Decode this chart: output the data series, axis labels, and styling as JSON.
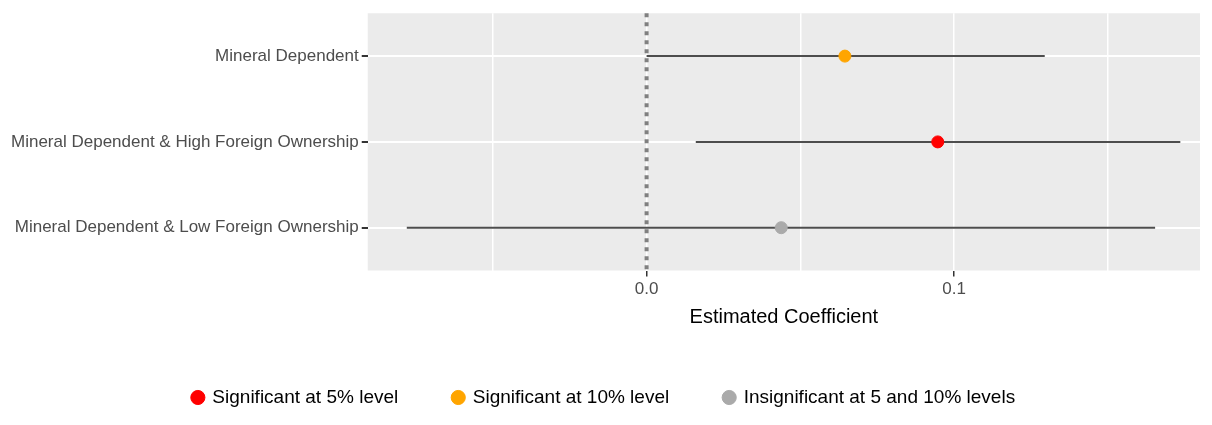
{
  "chart_data": {
    "type": "scatter",
    "orientation": "horizontal",
    "xlabel": "Estimated Coefficient",
    "categories": [
      "Mineral Dependent",
      "Mineral Dependent & High Foreign Ownership",
      "Mineral Dependent & Low Foreign Ownership"
    ],
    "series": [
      {
        "name": "Significant at 5% level",
        "color": "#ff0000",
        "values": [
          null,
          0.0947,
          null
        ],
        "errors": [
          null,
          [
            0.016,
            0.1736
          ],
          null
        ]
      },
      {
        "name": "Significant at 10% level",
        "color": "#ffa500",
        "values": [
          0.0645,
          null,
          null
        ],
        "errors": [
          [
            0.0,
            0.1295
          ],
          null,
          null
        ]
      },
      {
        "name": "Insignificant at 5 and 10% levels",
        "color": "#aaaaaa",
        "values": [
          null,
          null,
          0.0438
        ],
        "errors": [
          null,
          null,
          [
            -0.078,
            0.1654
          ]
        ]
      }
    ],
    "xlim": [
      -0.0907,
      0.18
    ],
    "xticks": [
      {
        "value": -0.05,
        "label": null
      },
      {
        "value": 0,
        "label": "0.0"
      },
      {
        "value": 0.05,
        "label": null
      },
      {
        "value": 0.1,
        "label": "0.1"
      },
      {
        "value": 0.15,
        "label": null
      }
    ],
    "ref_lines": [
      {
        "axis": "x",
        "value": 0,
        "line_style": "dotted",
        "color": "#808080"
      }
    ],
    "grid": true,
    "legend": "bottom",
    "marker": "circle"
  }
}
